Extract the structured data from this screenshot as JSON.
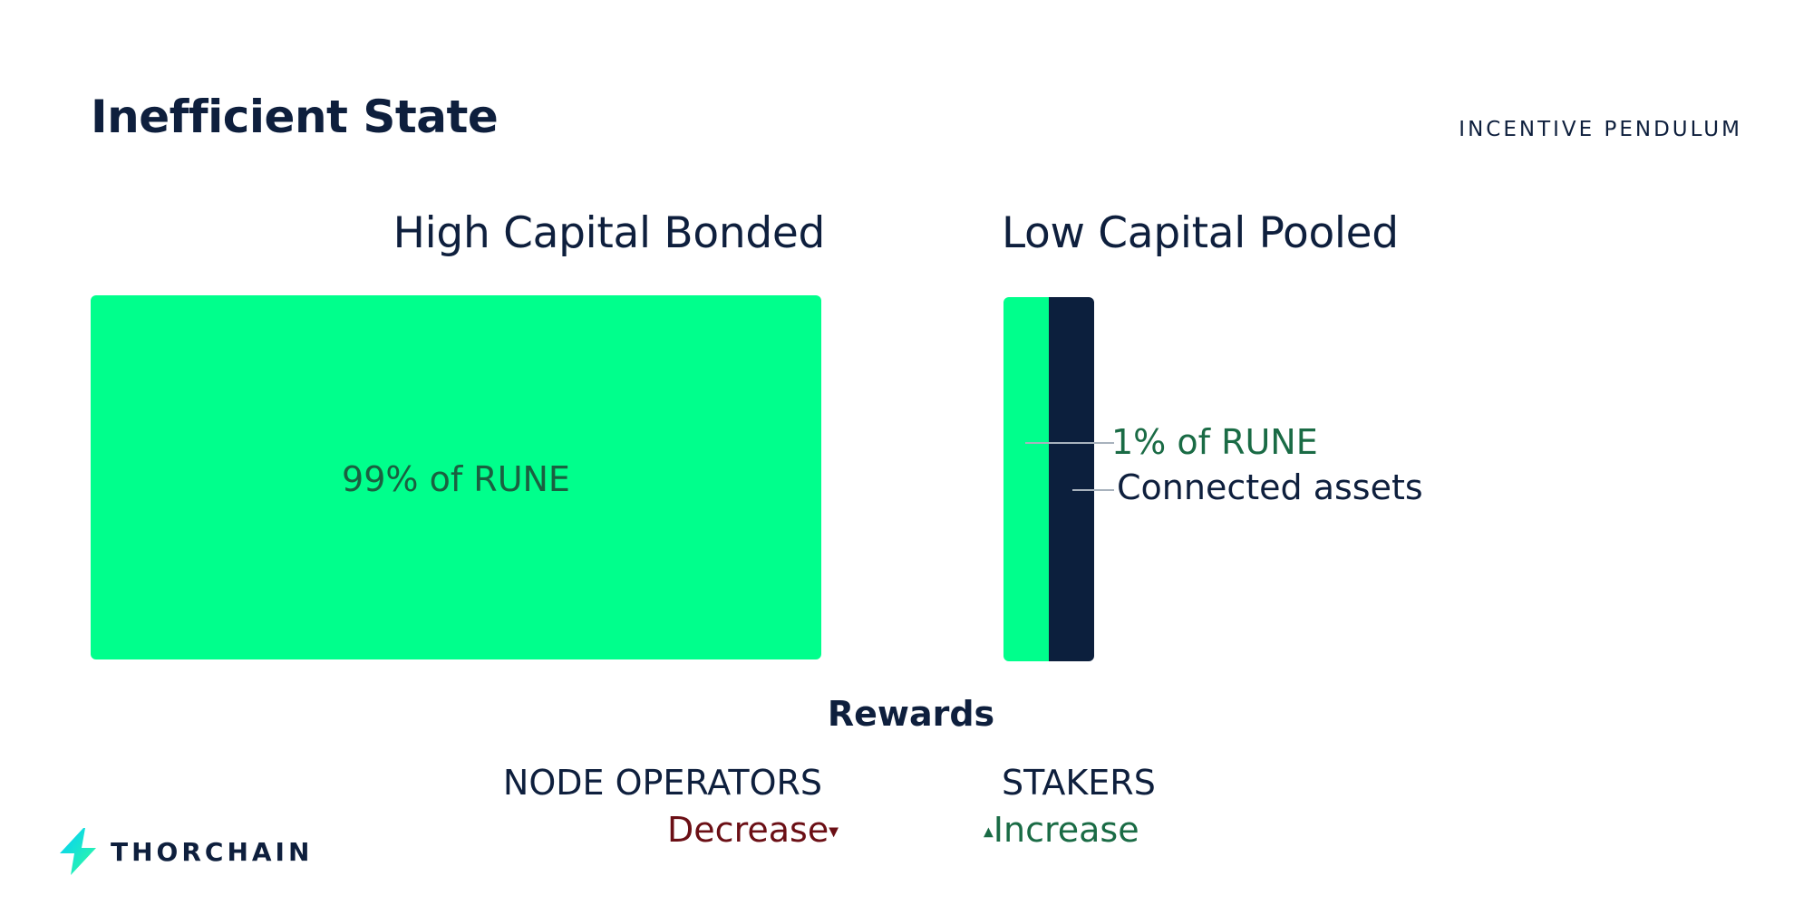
{
  "header": {
    "title": "Inefficient State",
    "kicker": "INCENTIVE PENDULUM"
  },
  "bonded": {
    "heading": "High Capital Bonded",
    "label": "99% of RUNE",
    "color": "#00ff8c"
  },
  "pooled": {
    "heading": "Low Capital Pooled",
    "rune_label": "1% of RUNE",
    "assets_label": "Connected assets",
    "rune_color": "#00ff8c",
    "assets_color": "#0c1f3d"
  },
  "rewards": {
    "title": "Rewards",
    "node_operators": {
      "label": "NODE OPERATORS",
      "trend": "Decrease",
      "trend_icon": "caret-down-icon",
      "color": "#6b0f15"
    },
    "stakers": {
      "label": "STAKERS",
      "trend": "Increase",
      "trend_icon": "caret-up-icon",
      "color": "#1a6b45"
    }
  },
  "brand": {
    "name": "THORCHAIN",
    "logo_icon": "thorchain-bolt-icon",
    "logo_colors": [
      "#00ccff",
      "#33ff99"
    ]
  }
}
